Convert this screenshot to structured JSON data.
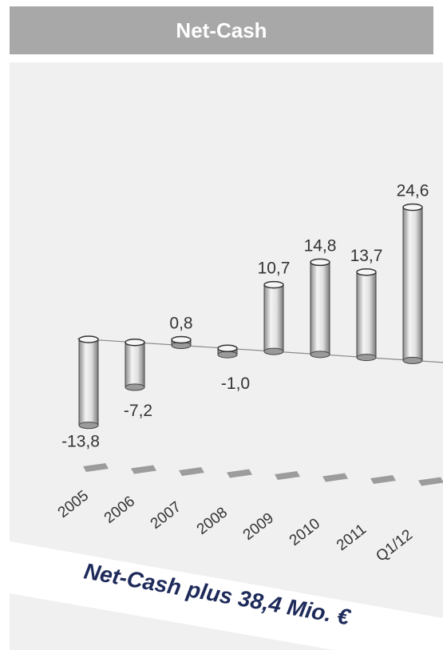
{
  "header": {
    "title": "Net-Cash"
  },
  "banner": {
    "text": "Net-Cash plus 38,4 Mio. €"
  },
  "colors": {
    "header_bg": "#a8a8a8",
    "chart_bg": "#f0f0f0",
    "banner_text": "#1e2a5a",
    "bar": "#d8d8d8"
  },
  "chart_data": {
    "type": "bar",
    "title": "Net-Cash",
    "categories": [
      "2005",
      "2006",
      "2007",
      "2008",
      "2009",
      "2010",
      "2011",
      "Q1/12"
    ],
    "values": [
      -13.8,
      -7.2,
      0.8,
      -1.0,
      10.7,
      14.8,
      13.7,
      24.6
    ],
    "value_labels": [
      "-13,8",
      "-7,2",
      "0,8",
      "-1,0",
      "10,7",
      "14,8",
      "13,7",
      "24,6"
    ],
    "unit": "Mio. €",
    "grid": false,
    "legend": "none"
  }
}
